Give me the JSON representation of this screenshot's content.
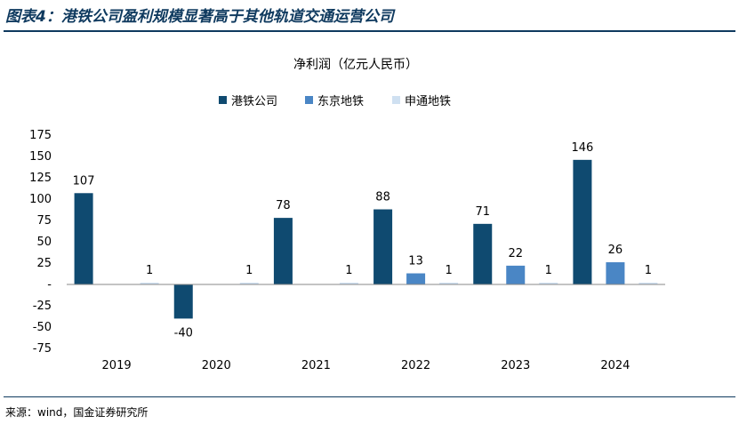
{
  "figure": {
    "title": "图表4：港铁公司盈利规模显著高于其他轨道交通运营公司",
    "source": "来源：wind，国金证券研究所"
  },
  "chart_data": {
    "type": "bar",
    "title": "净利润（亿元人民币）",
    "xlabel": "",
    "ylabel": "",
    "categories": [
      "2019",
      "2020",
      "2021",
      "2022",
      "2023",
      "2024"
    ],
    "series": [
      {
        "name": "港铁公司",
        "color": "#0f4a70",
        "values": [
          107,
          -40,
          78,
          88,
          71,
          146
        ],
        "labels": [
          "107",
          "-40",
          "78",
          "88",
          "71",
          "146"
        ]
      },
      {
        "name": "东京地铁",
        "color": "#4a86c5",
        "values": [
          null,
          null,
          null,
          13,
          22,
          26
        ],
        "labels": [
          "",
          "",
          "",
          "13",
          "22",
          "26"
        ]
      },
      {
        "name": "申通地铁",
        "color": "#cfe0f1",
        "values": [
          1,
          1,
          1,
          1,
          1,
          1
        ],
        "labels": [
          "1",
          "1",
          "1",
          "1",
          "1",
          "1"
        ]
      }
    ],
    "yticks": [
      175,
      150,
      125,
      100,
      75,
      50,
      25,
      0,
      -25,
      -50,
      -75
    ],
    "ytick_labels": [
      "175",
      "150",
      "125",
      "100",
      "75",
      "50",
      "25",
      "-",
      "-25",
      "-50",
      "-75"
    ],
    "ylim": [
      -75,
      175
    ],
    "grid": false,
    "legend_position": "top-center"
  }
}
